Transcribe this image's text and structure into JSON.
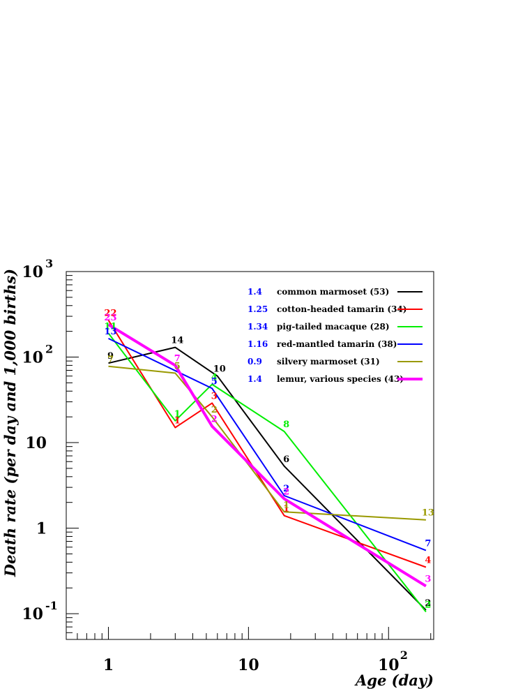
{
  "chart_data": {
    "type": "line",
    "title": "",
    "xlabel": "Age (day)",
    "ylabel": "Death rate (per day and 1,000 births)",
    "x_scale": "log",
    "y_scale": "log",
    "xlim": [
      0.5,
      210
    ],
    "ylim": [
      0.05,
      1000
    ],
    "grid": false,
    "legend_position": "top-right",
    "x_tick_labels": [
      {
        "value": 1,
        "base": "1",
        "exp": ""
      },
      {
        "value": 10,
        "base": "10",
        "exp": ""
      },
      {
        "value": 100,
        "base": "10",
        "exp": "2"
      }
    ],
    "y_tick_labels": [
      {
        "value": 0.1,
        "base": "10",
        "exp": "-1"
      },
      {
        "value": 1,
        "base": "1",
        "exp": ""
      },
      {
        "value": 10,
        "base": "10",
        "exp": ""
      },
      {
        "value": 100,
        "base": "10",
        "exp": "2"
      },
      {
        "value": 1000,
        "base": "10",
        "exp": "3"
      }
    ],
    "series": [
      {
        "name": "common marmoset (53)",
        "legend_value": "1.4",
        "color": "#000000",
        "width": 2,
        "points": [
          {
            "x": 1,
            "y": 85,
            "label": "9"
          },
          {
            "x": 3,
            "y": 130,
            "label": "14"
          },
          {
            "x": 6,
            "y": 60,
            "label": "10"
          },
          {
            "x": 18,
            "y": 5.3,
            "label": "6"
          },
          {
            "x": 185,
            "y": 0.11,
            "label": "2"
          }
        ]
      },
      {
        "name": "cotton-headed tamarin (34)",
        "legend_value": "1.25",
        "color": "#ff0000",
        "width": 2,
        "points": [
          {
            "x": 1,
            "y": 270,
            "label": "22"
          },
          {
            "x": 3,
            "y": 15,
            "label": "1"
          },
          {
            "x": 5.5,
            "y": 29,
            "label": "3"
          },
          {
            "x": 18,
            "y": 1.4,
            "label": "1"
          },
          {
            "x": 185,
            "y": 0.35,
            "label": "4"
          }
        ]
      },
      {
        "name": "pig-tailed macaque (28)",
        "legend_value": "1.34",
        "color": "#00ee00",
        "width": 2,
        "points": [
          {
            "x": 1,
            "y": 190,
            "label": "11"
          },
          {
            "x": 3,
            "y": 18,
            "label": "1"
          },
          {
            "x": 5.5,
            "y": 48,
            "label": "4"
          },
          {
            "x": 18,
            "y": 13.5,
            "label": "8"
          },
          {
            "x": 185,
            "y": 0.105,
            "label": "2"
          }
        ]
      },
      {
        "name": "red-mantled tamarin (38)",
        "legend_value": "1.16",
        "color": "#0000ff",
        "width": 2,
        "points": [
          {
            "x": 1,
            "y": 165,
            "label": "13"
          },
          {
            "x": 5.5,
            "y": 43,
            "label": "5"
          },
          {
            "x": 18,
            "y": 2.4,
            "label": "2"
          },
          {
            "x": 185,
            "y": 0.55,
            "label": "7"
          }
        ]
      },
      {
        "name": "silvery marmoset (31)",
        "legend_value": "0.9",
        "color": "#999900",
        "width": 2,
        "points": [
          {
            "x": 1,
            "y": 78,
            "label": "7"
          },
          {
            "x": 3,
            "y": 65,
            "label": "5"
          },
          {
            "x": 5.5,
            "y": 20,
            "label": "2"
          },
          {
            "x": 18,
            "y": 1.55,
            "label": "1"
          },
          {
            "x": 185,
            "y": 1.25,
            "label": "13"
          }
        ]
      },
      {
        "name": "lemur, various species (43)",
        "legend_value": "1.4",
        "color": "#ff00ff",
        "width": 4,
        "points": [
          {
            "x": 1,
            "y": 240,
            "label": "23"
          },
          {
            "x": 3,
            "y": 80,
            "label": "7"
          },
          {
            "x": 5.5,
            "y": 15.5,
            "label": "2"
          },
          {
            "x": 18,
            "y": 2.2,
            "label": "2"
          },
          {
            "x": 185,
            "y": 0.21,
            "label": "3"
          }
        ]
      }
    ]
  }
}
